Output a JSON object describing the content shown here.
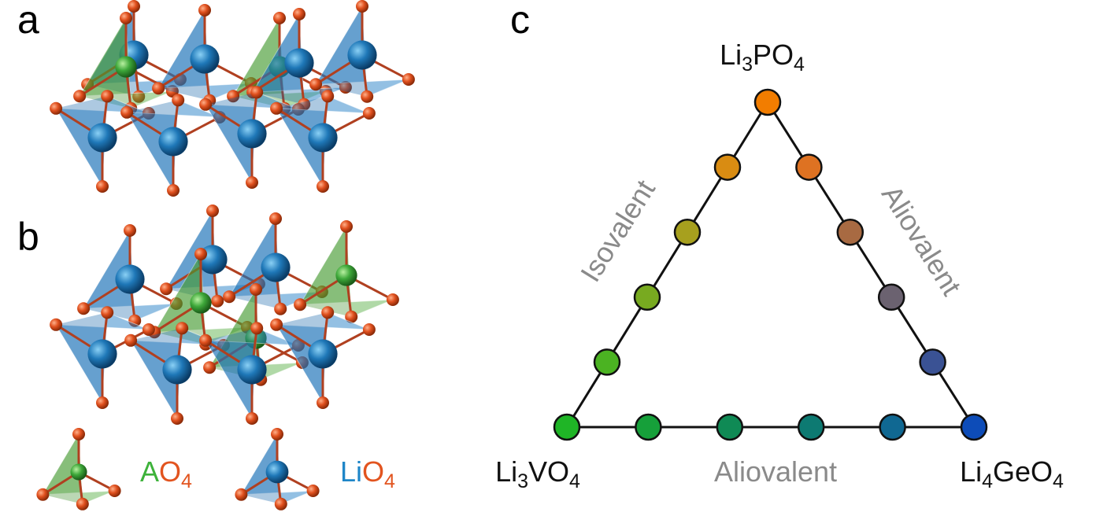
{
  "panels": [
    "a",
    "b",
    "c"
  ],
  "diagram": {
    "vertices": {
      "top": [
        "Li",
        "3",
        "PO",
        "4"
      ],
      "left": [
        "Li",
        "3",
        "VO",
        "4"
      ],
      "right": [
        "Li",
        "4",
        "GeO",
        "4"
      ]
    },
    "edges": {
      "left": "Isovalent",
      "right": "Aliovalent",
      "bottom": "Aliovalent"
    }
  },
  "legend": [
    {
      "parts": [
        "A",
        "O",
        "4"
      ]
    },
    {
      "parts": [
        "Li",
        "O",
        "4"
      ]
    }
  ]
}
